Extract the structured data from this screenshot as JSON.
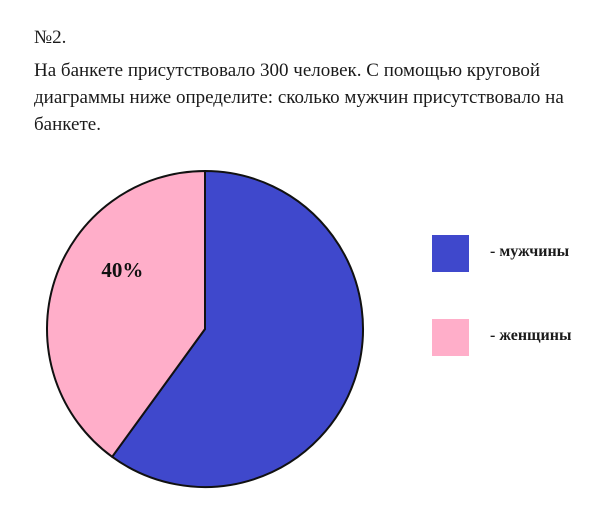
{
  "task": {
    "number": "№2.",
    "text": "На банкете присутствовало 300 человек. С помощью круговой диаграммы ниже определите: сколько мужчин присутствовало на банкете."
  },
  "chart_data": {
    "type": "pie",
    "slices": [
      {
        "name": "мужчины",
        "value": 60,
        "label": "",
        "color": "#3f48cc"
      },
      {
        "name": "женщины",
        "value": 40,
        "label": "40%",
        "color": "#ffaec9"
      }
    ],
    "start_angle_deg": 0,
    "direction": "clockwise",
    "legend_placement": "right"
  },
  "legend": {
    "items": [
      {
        "label": "- мужчины",
        "color": "#3f48cc"
      },
      {
        "label": "- женщины",
        "color": "#ffaec9"
      }
    ]
  },
  "colors": {
    "men": "#3f48cc",
    "women": "#ffaec9",
    "outline": "#111111"
  }
}
